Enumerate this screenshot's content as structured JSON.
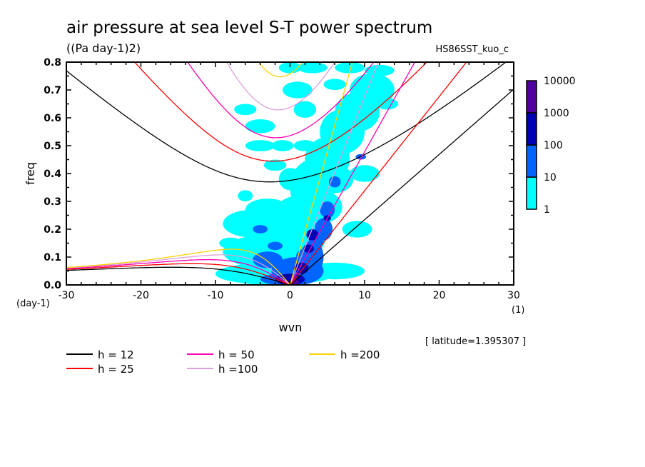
{
  "chart_data": {
    "type": "heatmap",
    "title": "air pressure at sea level S-T power spectrum",
    "subtitle": "((Pa day-1)2)",
    "experiment": "HS86SST_kuo_c",
    "xlabel": "wvn",
    "ylabel": "freq",
    "xunit": "(1)",
    "yunit": "(day-1)",
    "annotation": "[ latitude=1.395307 ]",
    "latitude": 1.395307,
    "xlim": [
      -30,
      30
    ],
    "ylim": [
      0.0,
      0.8
    ],
    "xticks": [
      "-30",
      "-20",
      "-10",
      "0",
      "10",
      "20",
      "30"
    ],
    "xtick_values": [
      -30,
      -20,
      -10,
      0,
      10,
      20,
      30
    ],
    "yticks": [
      "0.0",
      "0.1",
      "0.2",
      "0.3",
      "0.4",
      "0.5",
      "0.6",
      "0.7",
      "0.8"
    ],
    "ytick_values": [
      0,
      0.1,
      0.2,
      0.3,
      0.4,
      0.5,
      0.6,
      0.7,
      0.8
    ],
    "colorbar": {
      "labels": [
        "10000",
        "1000",
        "100",
        "10",
        "1"
      ],
      "levels": [
        1,
        10,
        100,
        1000,
        10000
      ],
      "colors": [
        "#00ffff",
        "#0064ff",
        "#0000b4",
        "#5000a0"
      ]
    },
    "spectrum_regions": {
      "note_fields": [
        "wvn",
        "freq",
        "wvn_halfwidth",
        "freq_halfwidth",
        "level_index"
      ],
      "cells": [
        [
          -2,
          0.04,
          8,
          0.04,
          0
        ],
        [
          -3,
          0.12,
          6,
          0.06,
          0
        ],
        [
          -5,
          0.22,
          4,
          0.05,
          0
        ],
        [
          -3,
          0.27,
          3,
          0.04,
          0
        ],
        [
          1,
          0.2,
          4,
          0.12,
          0
        ],
        [
          3,
          0.35,
          3,
          0.1,
          0
        ],
        [
          5,
          0.45,
          3,
          0.08,
          0
        ],
        [
          7,
          0.55,
          3,
          0.08,
          0
        ],
        [
          9,
          0.62,
          3,
          0.07,
          0
        ],
        [
          11,
          0.7,
          3,
          0.06,
          0
        ],
        [
          4,
          0.28,
          3,
          0.06,
          0
        ],
        [
          6,
          0.38,
          2.5,
          0.05,
          0
        ],
        [
          -5,
          0.04,
          3,
          0.015,
          0
        ],
        [
          6,
          0.05,
          4,
          0.03,
          0
        ],
        [
          9,
          0.2,
          2,
          0.03,
          0
        ],
        [
          10,
          0.4,
          2,
          0.03,
          0
        ],
        [
          -4,
          0.57,
          2,
          0.025,
          0
        ],
        [
          -2,
          0.43,
          1.5,
          0.02,
          0
        ],
        [
          -6,
          0.63,
          1.5,
          0.02,
          0
        ],
        [
          -4,
          0.5,
          2,
          0.02,
          0
        ],
        [
          1,
          0.7,
          2,
          0.03,
          0
        ],
        [
          2,
          0.63,
          1.5,
          0.03,
          0
        ],
        [
          0,
          0.78,
          1.5,
          0.02,
          0
        ],
        [
          3,
          0.78,
          2,
          0.02,
          0
        ],
        [
          6,
          0.72,
          1.5,
          0.02,
          0
        ],
        [
          8,
          0.78,
          2,
          0.02,
          0
        ],
        [
          12,
          0.77,
          2,
          0.02,
          0
        ],
        [
          13,
          0.65,
          1.5,
          0.02,
          0
        ],
        [
          -1,
          0.5,
          1.5,
          0.02,
          0
        ],
        [
          2,
          0.5,
          1.5,
          0.02,
          0
        ],
        [
          0,
          0.38,
          1.5,
          0.04,
          0
        ],
        [
          -2,
          0.17,
          2,
          0.03,
          0
        ],
        [
          -8,
          0.15,
          1.5,
          0.02,
          0
        ],
        [
          -6,
          0.32,
          1,
          0.02,
          0
        ],
        [
          1,
          0.05,
          3.5,
          0.05,
          1
        ],
        [
          3,
          0.1,
          1.5,
          0.06,
          1
        ],
        [
          4.5,
          0.2,
          1.2,
          0.04,
          1
        ],
        [
          5,
          0.27,
          1,
          0.03,
          1
        ],
        [
          -2,
          0.14,
          1,
          0.015,
          1
        ],
        [
          -4,
          0.2,
          1,
          0.015,
          1
        ],
        [
          3.5,
          0.16,
          1,
          0.03,
          1
        ],
        [
          2,
          0.1,
          1.2,
          0.03,
          1
        ],
        [
          6,
          0.37,
          0.8,
          0.02,
          1
        ],
        [
          9.5,
          0.46,
          0.7,
          0.01,
          1
        ],
        [
          -3,
          0.09,
          2,
          0.03,
          1
        ],
        [
          -1,
          0.02,
          3,
          0.02,
          1
        ],
        [
          0,
          0.02,
          2,
          0.02,
          2
        ],
        [
          3,
          0.18,
          0.8,
          0.02,
          2
        ],
        [
          2.5,
          0.13,
          0.7,
          0.015,
          2
        ],
        [
          1.5,
          0.06,
          1,
          0.02,
          2
        ],
        [
          5,
          0.24,
          0.5,
          0.01,
          2
        ],
        [
          0.5,
          0.01,
          0.7,
          0.01,
          3
        ]
      ]
    },
    "series": [
      {
        "name": "h = 12",
        "h": 12,
        "color": "#000000"
      },
      {
        "name": "h = 25",
        "h": 25,
        "color": "#ff0000"
      },
      {
        "name": "h = 50",
        "h": 50,
        "color": "#ff00b4"
      },
      {
        "name": "h =100",
        "h": 100,
        "color": "#dca0dc"
      },
      {
        "name": "h =200",
        "h": 200,
        "color": "#ffd200"
      }
    ],
    "legend_position": "bottom"
  }
}
